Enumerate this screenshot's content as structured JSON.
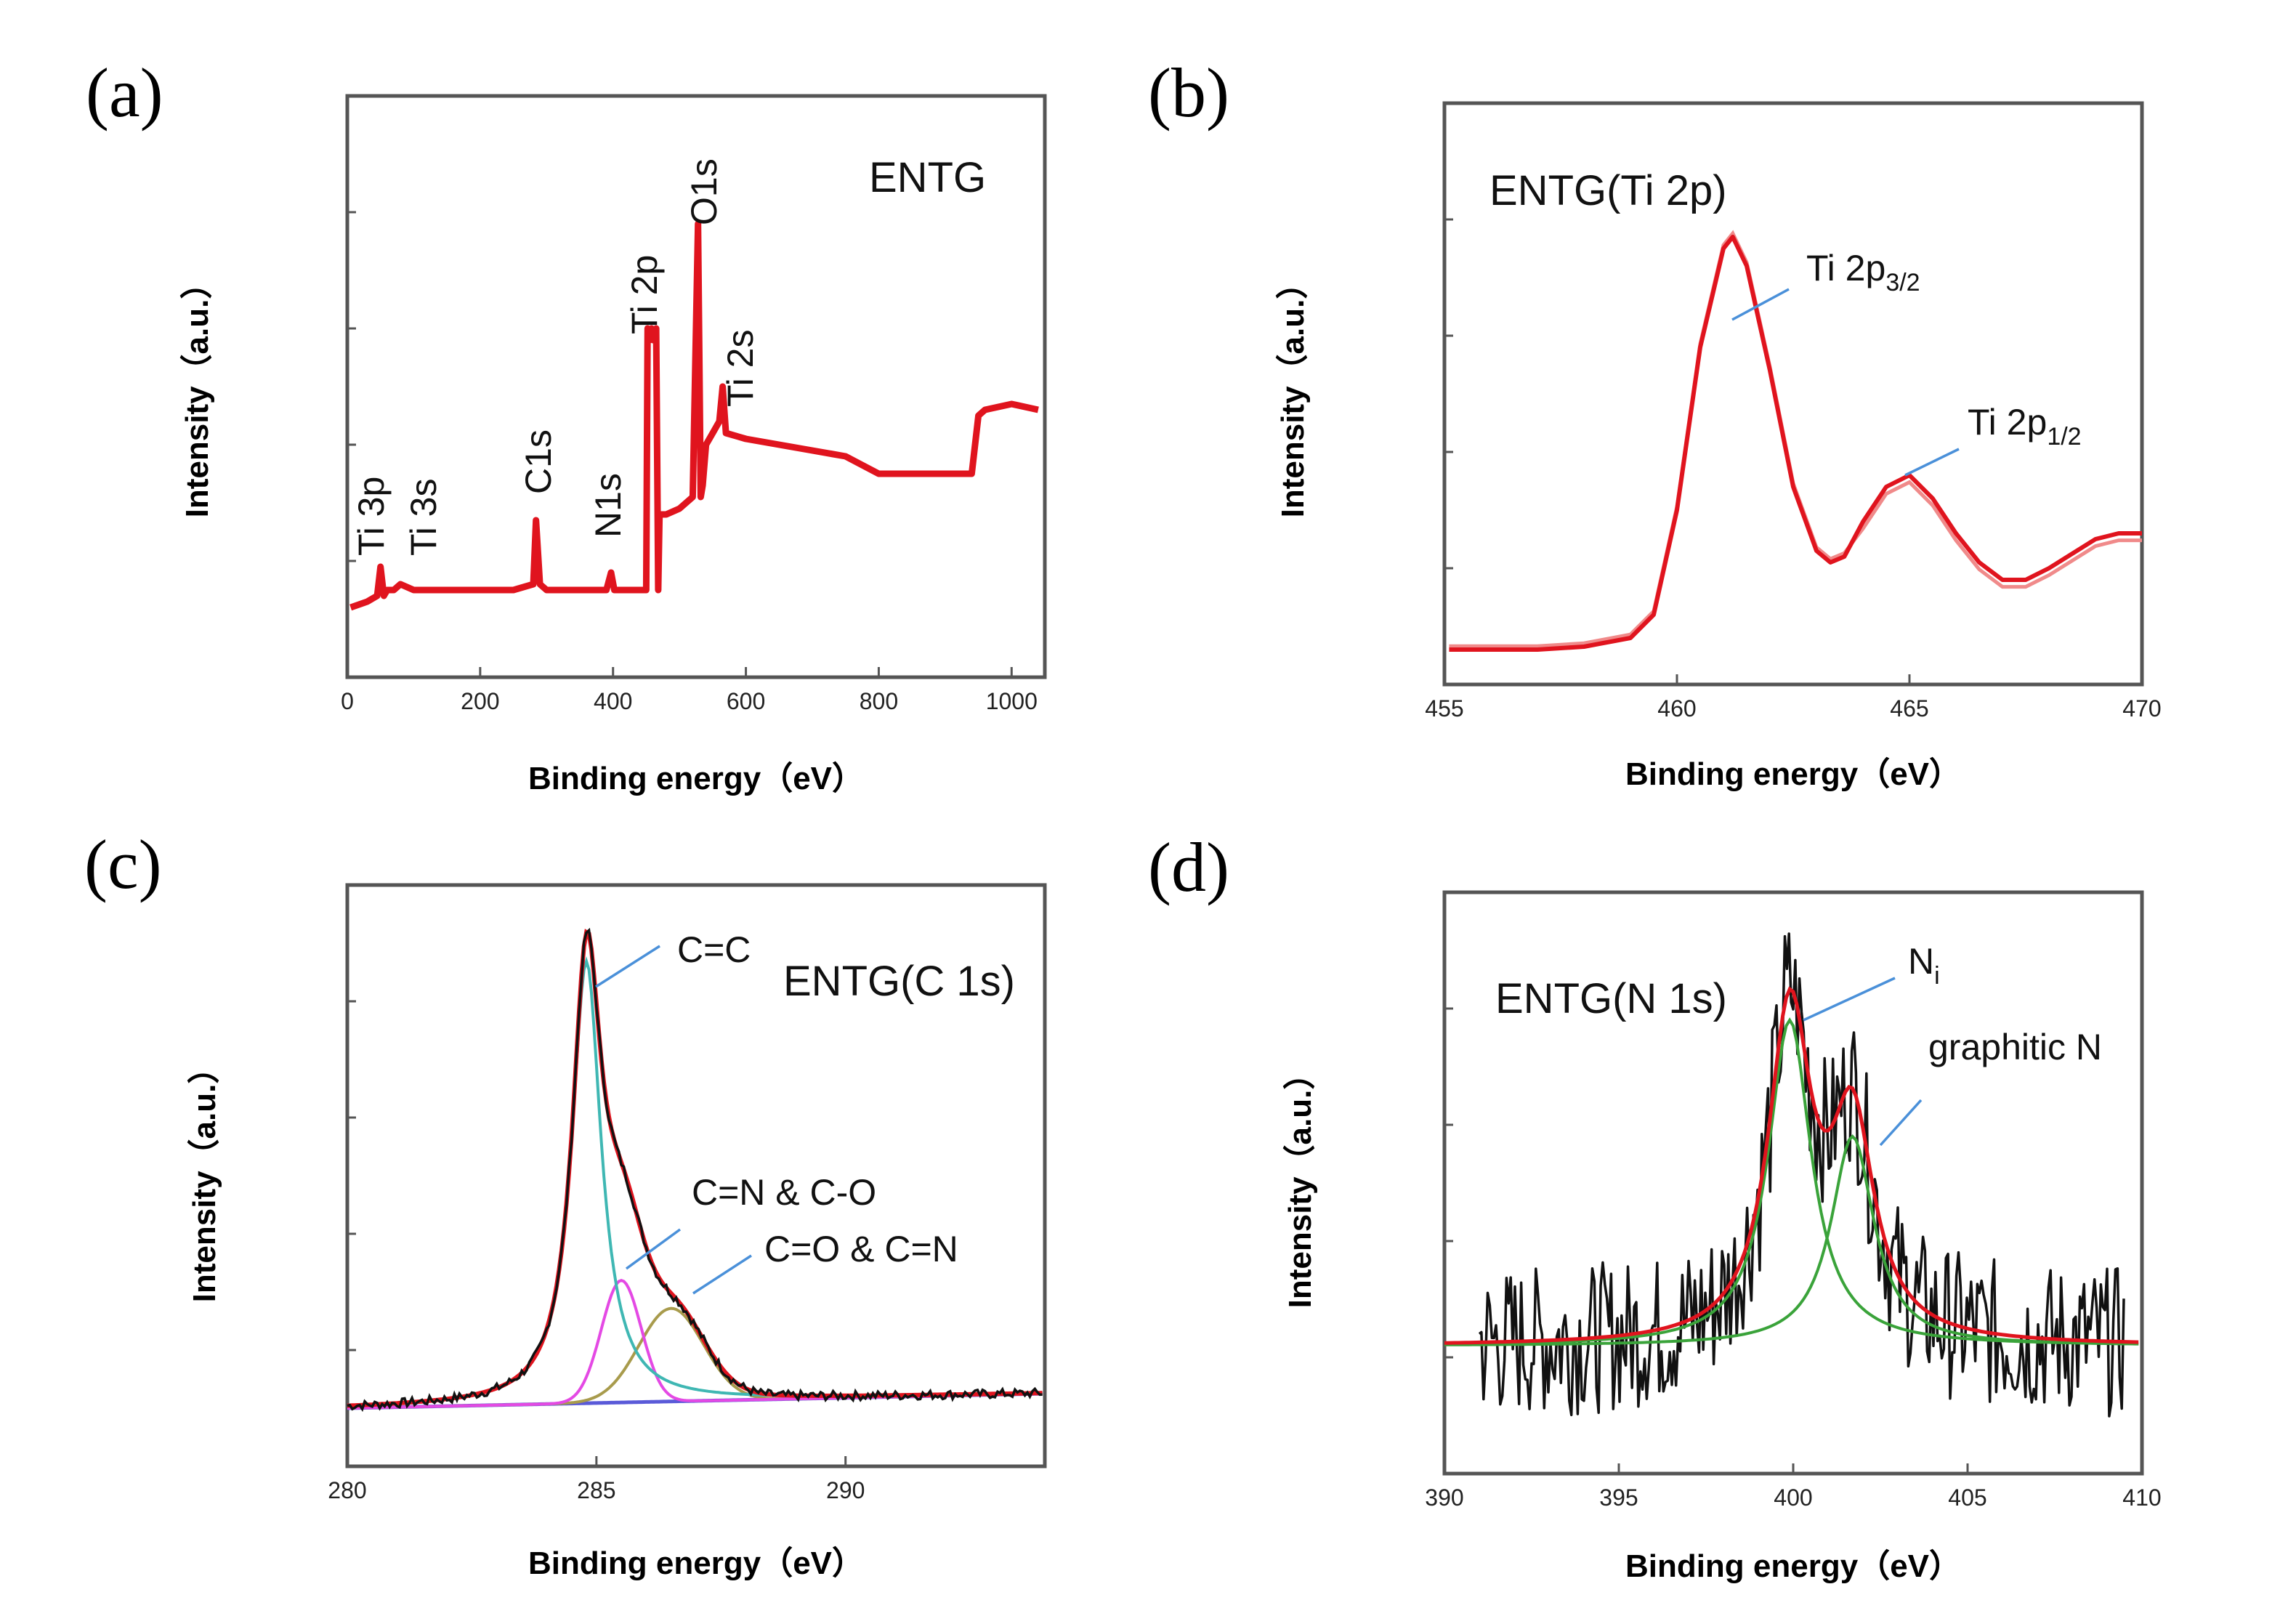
{
  "chart_data": [
    {
      "panel": "(a)",
      "type": "line",
      "title": "ENTG",
      "xlabel": "Binding energy（eV）",
      "ylabel": "Intensity（a.u.）",
      "xlim": [
        0,
        1050
      ],
      "ylim": [
        0,
        100
      ],
      "xticks": [
        0,
        200,
        400,
        600,
        800,
        1000
      ],
      "series": [
        {
          "name": "survey",
          "color": "#e0141e",
          "x": [
            5,
            30,
            45,
            50,
            55,
            60,
            70,
            80,
            100,
            150,
            200,
            250,
            280,
            284,
            290,
            300,
            350,
            390,
            397,
            402,
            420,
            440,
            450,
            452,
            455,
            458,
            460,
            462,
            465,
            468,
            470,
            480,
            500,
            520,
            528,
            532,
            535,
            540,
            550,
            560,
            565,
            570,
            600,
            650,
            700,
            750,
            800,
            850,
            900,
            940,
            950,
            960,
            1000,
            1040
          ],
          "y": [
            12,
            13,
            14,
            19,
            14,
            15,
            15,
            16,
            15,
            15,
            15,
            15,
            16,
            27,
            16,
            15,
            15,
            15,
            18,
            15,
            15,
            15,
            15,
            60,
            58,
            60,
            58,
            58,
            60,
            15,
            28,
            28,
            29,
            31,
            78,
            31,
            33,
            40,
            42,
            44,
            50,
            42,
            41,
            40,
            39,
            38,
            35,
            35,
            35,
            35,
            45,
            46,
            47,
            46
          ]
        }
      ],
      "annotations": [
        "Ti 3p",
        "Ti 3s",
        "C1s",
        "N1s",
        "Ti 2p",
        "O1s",
        "Ti 2s"
      ]
    },
    {
      "panel": "(b)",
      "type": "line",
      "title": "ENTG(Ti 2p)",
      "xlabel": "Binding energy（eV）",
      "ylabel": "Intensity（a.u.）",
      "xlim": [
        455,
        470
      ],
      "ylim": [
        0,
        100
      ],
      "xticks": [
        455,
        460,
        465,
        470
      ],
      "series": [
        {
          "name": "Ti 2p",
          "color": "#e0141e",
          "x": [
            455.1,
            457,
            458,
            459,
            459.5,
            460,
            460.5,
            461,
            461.2,
            461.5,
            462,
            462.5,
            463,
            463.3,
            463.6,
            464,
            464.5,
            465,
            465.5,
            466,
            466.5,
            467,
            467.5,
            468,
            469,
            469.5,
            470
          ],
          "y": [
            6,
            6,
            6.5,
            8,
            12,
            30,
            58,
            75,
            77,
            72,
            54,
            34,
            23,
            21,
            22,
            28,
            34,
            36,
            32,
            26,
            21,
            18,
            18,
            20,
            25,
            26,
            26
          ]
        }
      ],
      "peaks": [
        {
          "label": "Ti 2p",
          "sub": "3/2",
          "x": 461.2
        },
        {
          "label": "Ti 2p",
          "sub": "1/2",
          "x": 464.9
        }
      ]
    },
    {
      "panel": "(c)",
      "type": "line",
      "title": "ENTG(C 1s)",
      "xlabel": "Binding energy（eV）",
      "ylabel": "Intensity（a.u.）",
      "xlim": [
        280,
        294
      ],
      "ylim": [
        0,
        100
      ],
      "xticks": [
        280,
        285,
        290
      ],
      "series": [
        {
          "name": "C=C",
          "color": "#3fb7b3",
          "center": 284.8,
          "height": 76,
          "width": 0.3
        },
        {
          "name": "C=N & C-O",
          "color": "#e449e4",
          "center": 285.5,
          "height": 21,
          "width": 0.4
        },
        {
          "name": "C=O & C=N",
          "color": "#a89b4c",
          "center": 286.5,
          "height": 16,
          "width": 0.65
        },
        {
          "name": "Background",
          "color": "#5a5ad8"
        },
        {
          "name": "Fit",
          "color": "#e0141e"
        },
        {
          "name": "Raw data",
          "color": "#111111"
        }
      ],
      "peak_labels": [
        "C=C",
        "C=N & C-O",
        "C=O & C=N"
      ]
    },
    {
      "panel": "(d)",
      "type": "line",
      "title": "ENTG(N 1s)",
      "xlabel": "Binding energy（eV）",
      "ylabel": "Intensity（a.u.）",
      "xlim": [
        390,
        410
      ],
      "ylim": [
        0,
        100
      ],
      "xticks": [
        390,
        395,
        400,
        405,
        410
      ],
      "series": [
        {
          "name": "Ni",
          "color": "#3aa33a",
          "center": 399.9,
          "height": 56,
          "width": 0.75
        },
        {
          "name": "graphitic N",
          "color": "#3aa33a",
          "center": 401.7,
          "height": 36,
          "width": 0.75
        },
        {
          "name": "Fit",
          "color": "#e0141e"
        },
        {
          "name": "Raw data",
          "color": "#111111",
          "x_start": 391,
          "x_end": 409.5,
          "baseline": 22
        }
      ],
      "peak_labels": [
        "N",
        "i",
        "graphitic N"
      ]
    }
  ],
  "labels": {
    "a": {
      "letter": "(a)",
      "title": "ENTG",
      "xlabel": "Binding energy（eV）",
      "ylabel": "Intensity（a.u.）",
      "ann": [
        "Ti 3p",
        "Ti 3s",
        "C1s",
        "N1s",
        "Ti 2p",
        "O1s",
        "Ti 2s"
      ]
    },
    "b": {
      "letter": "(b)",
      "title": "ENTG(Ti 2p)",
      "xlabel": "Binding energy（eV）",
      "ylabel": "Intensity（a.u.）",
      "p32": "Ti 2p",
      "p32sub": "3/2",
      "p12": "Ti 2p",
      "p12sub": "1/2"
    },
    "c": {
      "letter": "(c)",
      "title": "ENTG(C 1s)",
      "xlabel": "Binding energy（eV）",
      "ylabel": "Intensity（a.u.）",
      "cc": "C=C",
      "cn": "C=N & C-O",
      "co": "C=O & C=N"
    },
    "d": {
      "letter": "(d)",
      "title": "ENTG(N 1s)",
      "xlabel": "Binding energy（eV）",
      "ylabel": "Intensity（a.u.）",
      "ni": "N",
      "nisub": "i",
      "gn": "graphitic N"
    }
  }
}
